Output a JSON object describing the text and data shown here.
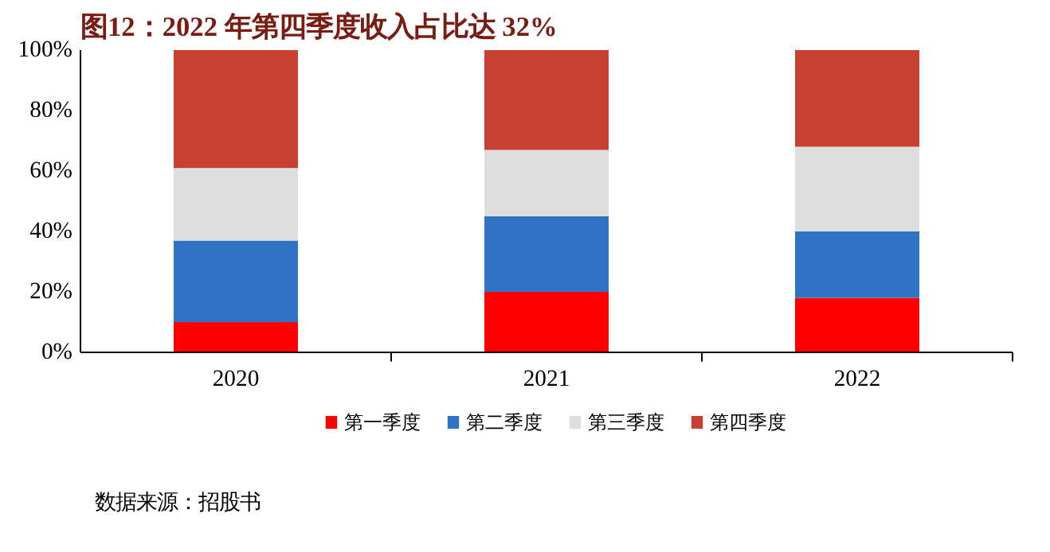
{
  "chart_data": {
    "type": "bar",
    "title": "图12：2022 年第四季度收入占比达 32%",
    "categories": [
      "2020",
      "2021",
      "2022"
    ],
    "stacked": true,
    "series": [
      {
        "name": "第一季度",
        "color": "#ff0000",
        "values": [
          10,
          20,
          18
        ]
      },
      {
        "name": "第二季度",
        "color": "#3073c4",
        "values": [
          27,
          25,
          22
        ]
      },
      {
        "name": "第三季度",
        "color": "#dedede",
        "values": [
          24,
          22,
          28
        ]
      },
      {
        "name": "第四季度",
        "color": "#c84032",
        "values": [
          39,
          33,
          32
        ]
      }
    ],
    "ylim": [
      0,
      100
    ],
    "yticks": [
      {
        "value": 0,
        "label": "0%"
      },
      {
        "value": 20,
        "label": "20%"
      },
      {
        "value": 40,
        "label": "40%"
      },
      {
        "value": 60,
        "label": "60%"
      },
      {
        "value": 80,
        "label": "80%"
      },
      {
        "value": 100,
        "label": "100%"
      }
    ],
    "grid": false,
    "legend": "bottom",
    "annotations": [
      "数据来源：招股书"
    ]
  }
}
